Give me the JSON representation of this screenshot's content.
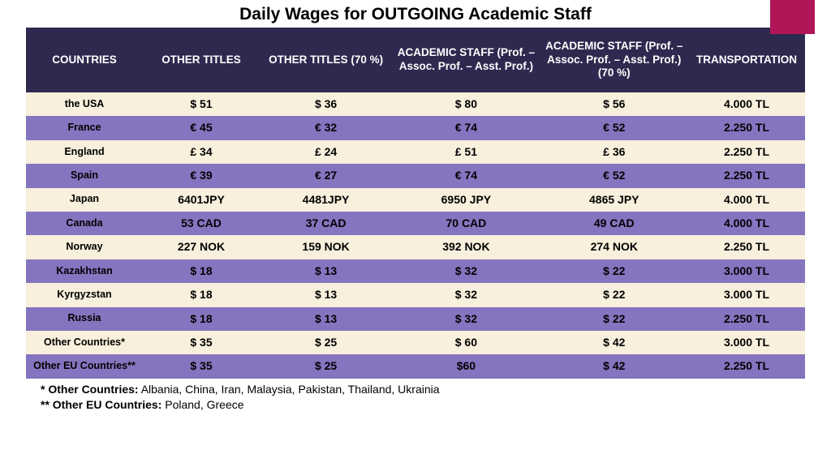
{
  "title": "Daily Wages for OUTGOING Academic Staff",
  "accent_color": "#b01657",
  "table": {
    "header_bg": "#2e2a4f",
    "header_fg": "#ffffff",
    "row_colors": [
      "#f8efdc",
      "#8574bf"
    ],
    "col_widths": [
      "15%",
      "15%",
      "17%",
      "19%",
      "19%",
      "15%"
    ],
    "columns": [
      "COUNTRIES",
      "OTHER TITLES",
      "OTHER  TITLES (70 %)",
      "ACADEMIC STAFF (Prof. – Assoc. Prof. – Asst. Prof.)",
      "ACADEMIC STAFF (Prof. – Assoc. Prof. – Asst. Prof.)  (70 %)",
      "TRANSPORTATION"
    ],
    "rows": [
      [
        "the USA",
        "$ 51",
        "$ 36",
        "$ 80",
        "$ 56",
        "4.000 TL"
      ],
      [
        "France",
        "€ 45",
        "€ 32",
        "€ 74",
        "€ 52",
        "2.250 TL"
      ],
      [
        "England",
        "£ 34",
        "£ 24",
        "£ 51",
        "£ 36",
        "2.250 TL"
      ],
      [
        "Spain",
        "€ 39",
        "€ 27",
        "€ 74",
        "€ 52",
        "2.250 TL"
      ],
      [
        "Japan",
        "6401JPY",
        "4481JPY",
        "6950 JPY",
        "4865 JPY",
        "4.000 TL"
      ],
      [
        "Canada",
        "53 CAD",
        "37 CAD",
        "70 CAD",
        "49 CAD",
        "4.000 TL"
      ],
      [
        "Norway",
        "227 NOK",
        "159 NOK",
        "392 NOK",
        "274 NOK",
        "2.250 TL"
      ],
      [
        "Kazakhstan",
        "$ 18",
        "$ 13",
        "$ 32",
        "$ 22",
        "3.000 TL"
      ],
      [
        "Kyrgyzstan",
        "$ 18",
        "$ 13",
        "$ 32",
        "$ 22",
        "3.000 TL"
      ],
      [
        "Russia",
        "$ 18",
        "$ 13",
        "$ 32",
        "$ 22",
        "2.250 TL"
      ],
      [
        "Other Countries*",
        "$ 35",
        "$ 25",
        "$ 60",
        "$ 42",
        "3.000 TL"
      ],
      [
        "Other EU Countries**",
        "$ 35",
        "$ 25",
        "$60",
        "$ 42",
        "2.250 TL"
      ]
    ]
  },
  "footnotes": [
    {
      "label": "* Other Countries:",
      "text": " Albania, China, Iran, Malaysia, Pakistan, Thailand, Ukrainia"
    },
    {
      "label": "** Other EU Countries:",
      "text": " Poland, Greece"
    }
  ]
}
